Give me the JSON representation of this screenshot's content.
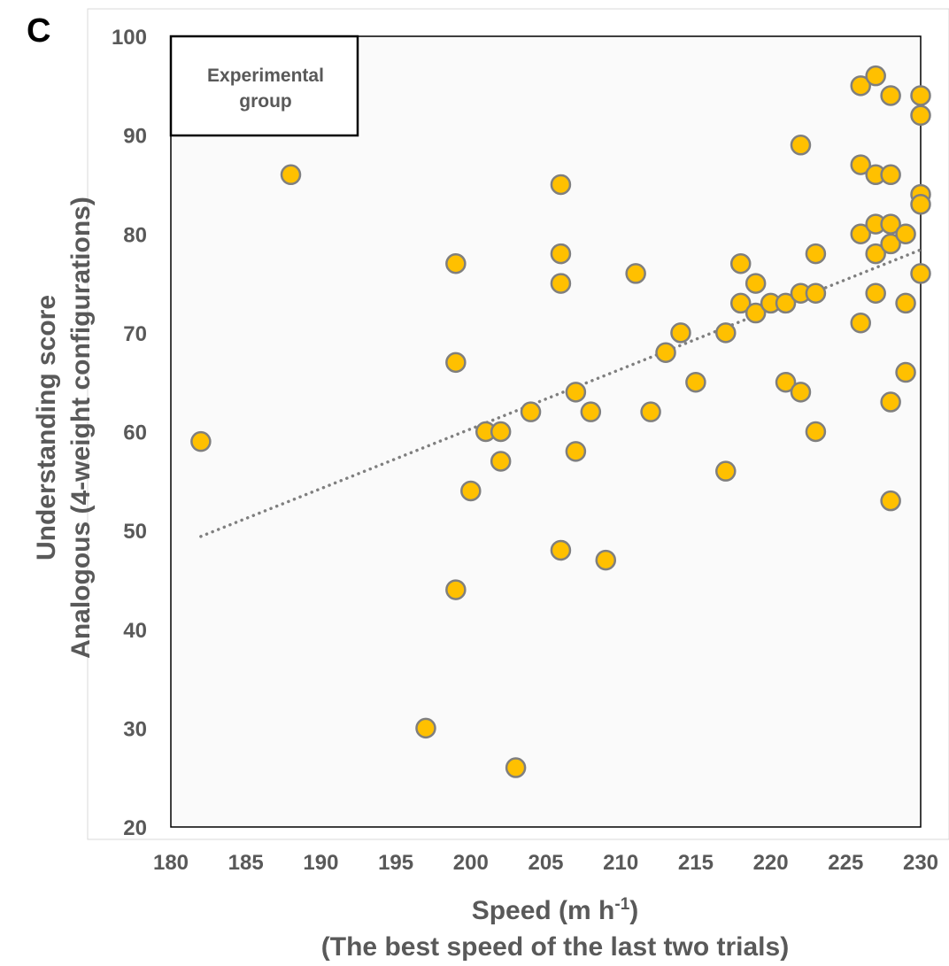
{
  "panel_label": "C",
  "chart_data": {
    "type": "scatter",
    "legend_text": [
      "Experimental",
      "group"
    ],
    "legend_placement": "top-left",
    "ylabel_lines": [
      "Understanding score",
      "Analogous (4-weight configurations)"
    ],
    "xlabel_line1": "Speed (m h",
    "xlabel_sup": "-1",
    "xlabel_line1_end": ")",
    "xlabel_line2": "(The best speed of the last two trials)",
    "xlim": [
      180,
      230
    ],
    "ylim": [
      20,
      100
    ],
    "x_ticks": [
      "180",
      "185",
      "190",
      "195",
      "200",
      "205",
      "210",
      "215",
      "220",
      "225",
      "230"
    ],
    "y_ticks": [
      "20",
      "30",
      "40",
      "50",
      "60",
      "70",
      "80",
      "90",
      "100"
    ],
    "grid": false,
    "marker_color": "#FFC000",
    "marker_edge_color": "#7F7F7F",
    "trendline": {
      "style": "dotted",
      "color": "#7F7F7F",
      "x": [
        182,
        230
      ],
      "y": [
        49.4,
        78.4
      ]
    },
    "x": [
      182,
      188,
      197,
      199,
      199,
      199,
      200,
      201,
      202,
      202,
      203,
      204,
      206,
      206,
      206,
      206,
      207,
      207,
      208,
      209,
      211,
      212,
      213,
      214,
      215,
      217,
      217,
      218,
      218,
      219,
      219,
      220,
      221,
      221,
      222,
      222,
      222,
      223,
      223,
      223,
      226,
      226,
      226,
      226,
      227,
      227,
      227,
      227,
      227,
      228,
      228,
      228,
      228,
      228,
      228,
      229,
      229,
      229,
      230,
      230,
      230,
      230,
      230
    ],
    "y": [
      59,
      86,
      30,
      77,
      67,
      44,
      54,
      60,
      60,
      57,
      26,
      62,
      85,
      78,
      75,
      48,
      64,
      58,
      62,
      47,
      76,
      62,
      68,
      70,
      65,
      70,
      56,
      77,
      73,
      75,
      72,
      73,
      73,
      65,
      89,
      74,
      64,
      78,
      74,
      60,
      95,
      87,
      80,
      71,
      96,
      86,
      81,
      78,
      74,
      94,
      86,
      81,
      79,
      63,
      53,
      80,
      73,
      66,
      94,
      92,
      84,
      83,
      76
    ]
  }
}
